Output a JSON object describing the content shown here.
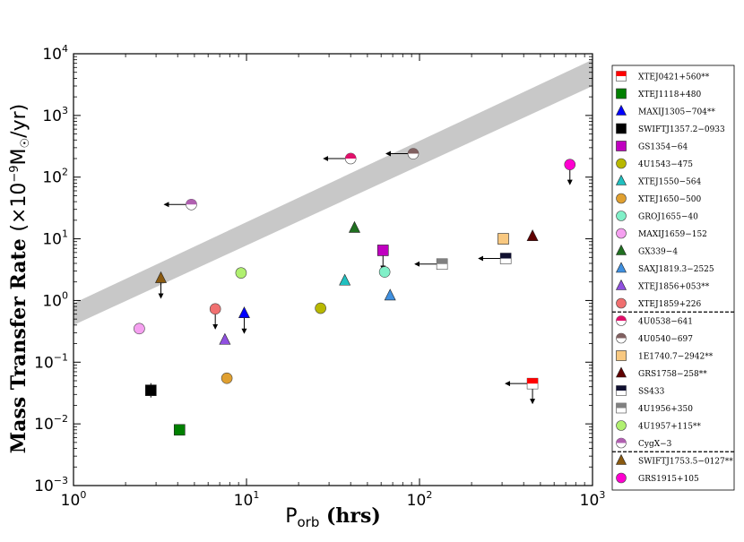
{
  "chart_data": {
    "type": "scatter",
    "xscale": "log",
    "yscale": "log",
    "xlim": [
      1,
      1000
    ],
    "ylim": [
      0.001,
      10000
    ],
    "xlabel": {
      "base": "P",
      "subscript": "orb",
      "unit": " (hrs)"
    },
    "ylabel": {
      "main": "Mass Transfer Rate",
      "unit": "(×10",
      "exp": "−9",
      "after": "M",
      "sun": "☉",
      "end": "/yr)"
    },
    "xticks": [
      {
        "value": 1,
        "exp": "0"
      },
      {
        "value": 10,
        "exp": "1"
      },
      {
        "value": 100,
        "exp": "2"
      },
      {
        "value": 1000,
        "exp": "3"
      }
    ],
    "yticks": [
      {
        "value": 0.001,
        "exp": "−3"
      },
      {
        "value": 0.01,
        "exp": "−2"
      },
      {
        "value": 0.1,
        "exp": "−1"
      },
      {
        "value": 1,
        "exp": "0"
      },
      {
        "value": 10,
        "exp": "1"
      },
      {
        "value": 100,
        "exp": "2"
      },
      {
        "value": 1000,
        "exp": "3"
      },
      {
        "value": 10000,
        "exp": "4"
      }
    ],
    "tick_base": "10",
    "band": {
      "color": "#c8c8c8",
      "lower": [
        [
          1,
          0.4
        ],
        [
          1000,
          3000
        ]
      ],
      "upper": [
        [
          1,
          0.9
        ],
        [
          1000,
          8000
        ]
      ]
    },
    "series": [
      {
        "name": "XTEJ0421+560**",
        "marker": "square-half",
        "color": "#ff0000",
        "x": 450,
        "y": 0.045,
        "arrow": "left-down"
      },
      {
        "name": "XTEJ1118+480",
        "marker": "square",
        "color": "#008000",
        "x": 4.1,
        "y": 0.008
      },
      {
        "name": "MAXIJ1305−704**",
        "marker": "triangle",
        "color": "#0000ff",
        "x": 9.7,
        "y": 0.62,
        "arrow": "down"
      },
      {
        "name": "SWIFTJ1357.2−0933",
        "marker": "square",
        "color": "#000000",
        "x": 2.8,
        "y": 0.035,
        "errbar": true
      },
      {
        "name": "GS1354−64",
        "marker": "square",
        "color": "#c000c0",
        "x": 61.5,
        "y": 6.5,
        "arrow": "down"
      },
      {
        "name": "4U1543−475",
        "marker": "circle",
        "color": "#b8b800",
        "x": 26.8,
        "y": 0.75
      },
      {
        "name": "XTEJ1550−564",
        "marker": "triangle",
        "color": "#20c0c0",
        "x": 37,
        "y": 2.1
      },
      {
        "name": "XTEJ1650−500",
        "marker": "circle",
        "color": "#e0a030",
        "x": 7.7,
        "y": 0.055
      },
      {
        "name": "GROJ1655−40",
        "marker": "circle",
        "color": "#80f0c8",
        "x": 62.9,
        "y": 2.9
      },
      {
        "name": "MAXIJ1659−152",
        "marker": "circle",
        "color": "#f5a0f0",
        "x": 2.4,
        "y": 0.35
      },
      {
        "name": "GX339−4",
        "marker": "triangle",
        "color": "#207020",
        "x": 42.1,
        "y": 15
      },
      {
        "name": "SAXJ1819.3−2525",
        "marker": "triangle",
        "color": "#4090e0",
        "x": 67.6,
        "y": 1.2
      },
      {
        "name": "XTEJ1856+053**",
        "marker": "triangle",
        "color": "#9050e0",
        "x": 7.5,
        "y": 0.23
      },
      {
        "name": "XTEJ1859+226",
        "marker": "circle",
        "color": "#f07070",
        "x": 6.6,
        "y": 0.73,
        "arrow": "down"
      },
      {
        "name": "4U0538−641",
        "marker": "circle-half",
        "color": "#e0106a",
        "x": 40,
        "y": 200,
        "arrow": "left"
      },
      {
        "name": "4U0540−697",
        "marker": "circle-half",
        "color": "#806060",
        "x": 92,
        "y": 240,
        "arrow": "left"
      },
      {
        "name": "1E1740.7−2942**",
        "marker": "square",
        "color": "#f8c880",
        "x": 305,
        "y": 10
      },
      {
        "name": "GRS1758−258**",
        "marker": "triangle",
        "color": "#600000",
        "x": 450,
        "y": 11
      },
      {
        "name": "SS433",
        "marker": "square-half",
        "color": "#101030",
        "x": 315,
        "y": 4.8,
        "arrow": "left"
      },
      {
        "name": "4U1956+350",
        "marker": "square-half",
        "color": "#808080",
        "x": 135,
        "y": 3.9,
        "arrow": "left"
      },
      {
        "name": "4U1957+115**",
        "marker": "circle",
        "color": "#b0f070",
        "x": 9.3,
        "y": 2.8
      },
      {
        "name": "CygX−3",
        "marker": "circle-half",
        "color": "#b060b0",
        "x": 4.8,
        "y": 36,
        "arrow": "left"
      },
      {
        "name": "SWIFTJ1753.5−0127**",
        "marker": "triangle",
        "color": "#8a5a10",
        "x": 3.2,
        "y": 2.3,
        "arrow": "down"
      },
      {
        "name": "GRS1915+105",
        "marker": "circle",
        "color": "#ff00d0",
        "x": 740,
        "y": 160,
        "arrow": "down"
      }
    ],
    "legend": {
      "position": "right",
      "separators_after": [
        13,
        21
      ]
    }
  }
}
